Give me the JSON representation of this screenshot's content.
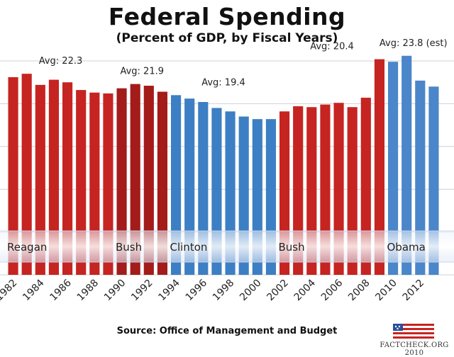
{
  "chart_data": {
    "type": "bar",
    "title": "Federal Spending",
    "subtitle": "(Percent of GDP, by Fiscal Years)",
    "source": "Source: Office of Management and Budget",
    "ylim": [
      0,
      25
    ],
    "grid": true,
    "categories": [
      "1982",
      "1983",
      "1984",
      "1985",
      "1986",
      "1987",
      "1988",
      "1989",
      "1990",
      "1991",
      "1992",
      "1993",
      "1994",
      "1995",
      "1996",
      "1997",
      "1998",
      "1999",
      "2000",
      "2001",
      "2002",
      "2003",
      "2004",
      "2005",
      "2006",
      "2007",
      "2008",
      "2009",
      "2010",
      "2011",
      "2012",
      "2013"
    ],
    "tick_labels": [
      "1982",
      "1984",
      "1986",
      "1988",
      "1990",
      "1992",
      "1994",
      "1996",
      "1998",
      "2000",
      "2002",
      "2004",
      "2006",
      "2008",
      "2010",
      "2012"
    ],
    "values": [
      23.1,
      23.5,
      22.2,
      22.8,
      22.5,
      21.6,
      21.3,
      21.2,
      21.8,
      22.3,
      22.1,
      21.4,
      21.0,
      20.6,
      20.2,
      19.5,
      19.1,
      18.5,
      18.2,
      18.2,
      19.1,
      19.7,
      19.6,
      19.9,
      20.1,
      19.6,
      20.7,
      25.2,
      24.9,
      25.6,
      22.7,
      22.0
    ],
    "bar_groups": [
      "reagan",
      "reagan",
      "reagan",
      "reagan",
      "reagan",
      "reagan",
      "reagan",
      "reagan",
      "bush41",
      "bush41",
      "bush41",
      "bush41",
      "clinton",
      "clinton",
      "clinton",
      "clinton",
      "clinton",
      "clinton",
      "clinton",
      "clinton",
      "bush43",
      "bush43",
      "bush43",
      "bush43",
      "bush43",
      "bush43",
      "bush43",
      "bush43",
      "obama",
      "obama",
      "obama",
      "obama"
    ],
    "group_colors": {
      "reagan": "#c62421",
      "bush41": "#a31c1a",
      "clinton": "#3d7fc4",
      "bush43": "#c62421",
      "obama": "#4a86c9"
    },
    "annotations": [
      {
        "text": "Avg: 22.3",
        "group": "reagan"
      },
      {
        "text": "Avg: 21.9",
        "group": "bush41"
      },
      {
        "text": "Avg: 19.4",
        "group": "clinton"
      },
      {
        "text": "Avg: 20.4",
        "group": "bush43"
      },
      {
        "text": "Avg: 23.8 (est)",
        "group": "obama"
      }
    ],
    "band_labels": [
      {
        "text": "Reagan",
        "group": "reagan"
      },
      {
        "text": "Bush",
        "group": "bush41"
      },
      {
        "text": "Clinton",
        "group": "clinton"
      },
      {
        "text": "Bush",
        "group": "bush43"
      },
      {
        "text": "Obama",
        "group": "obama"
      }
    ]
  },
  "logo_text": "FACTCHECK.ORG 2010"
}
